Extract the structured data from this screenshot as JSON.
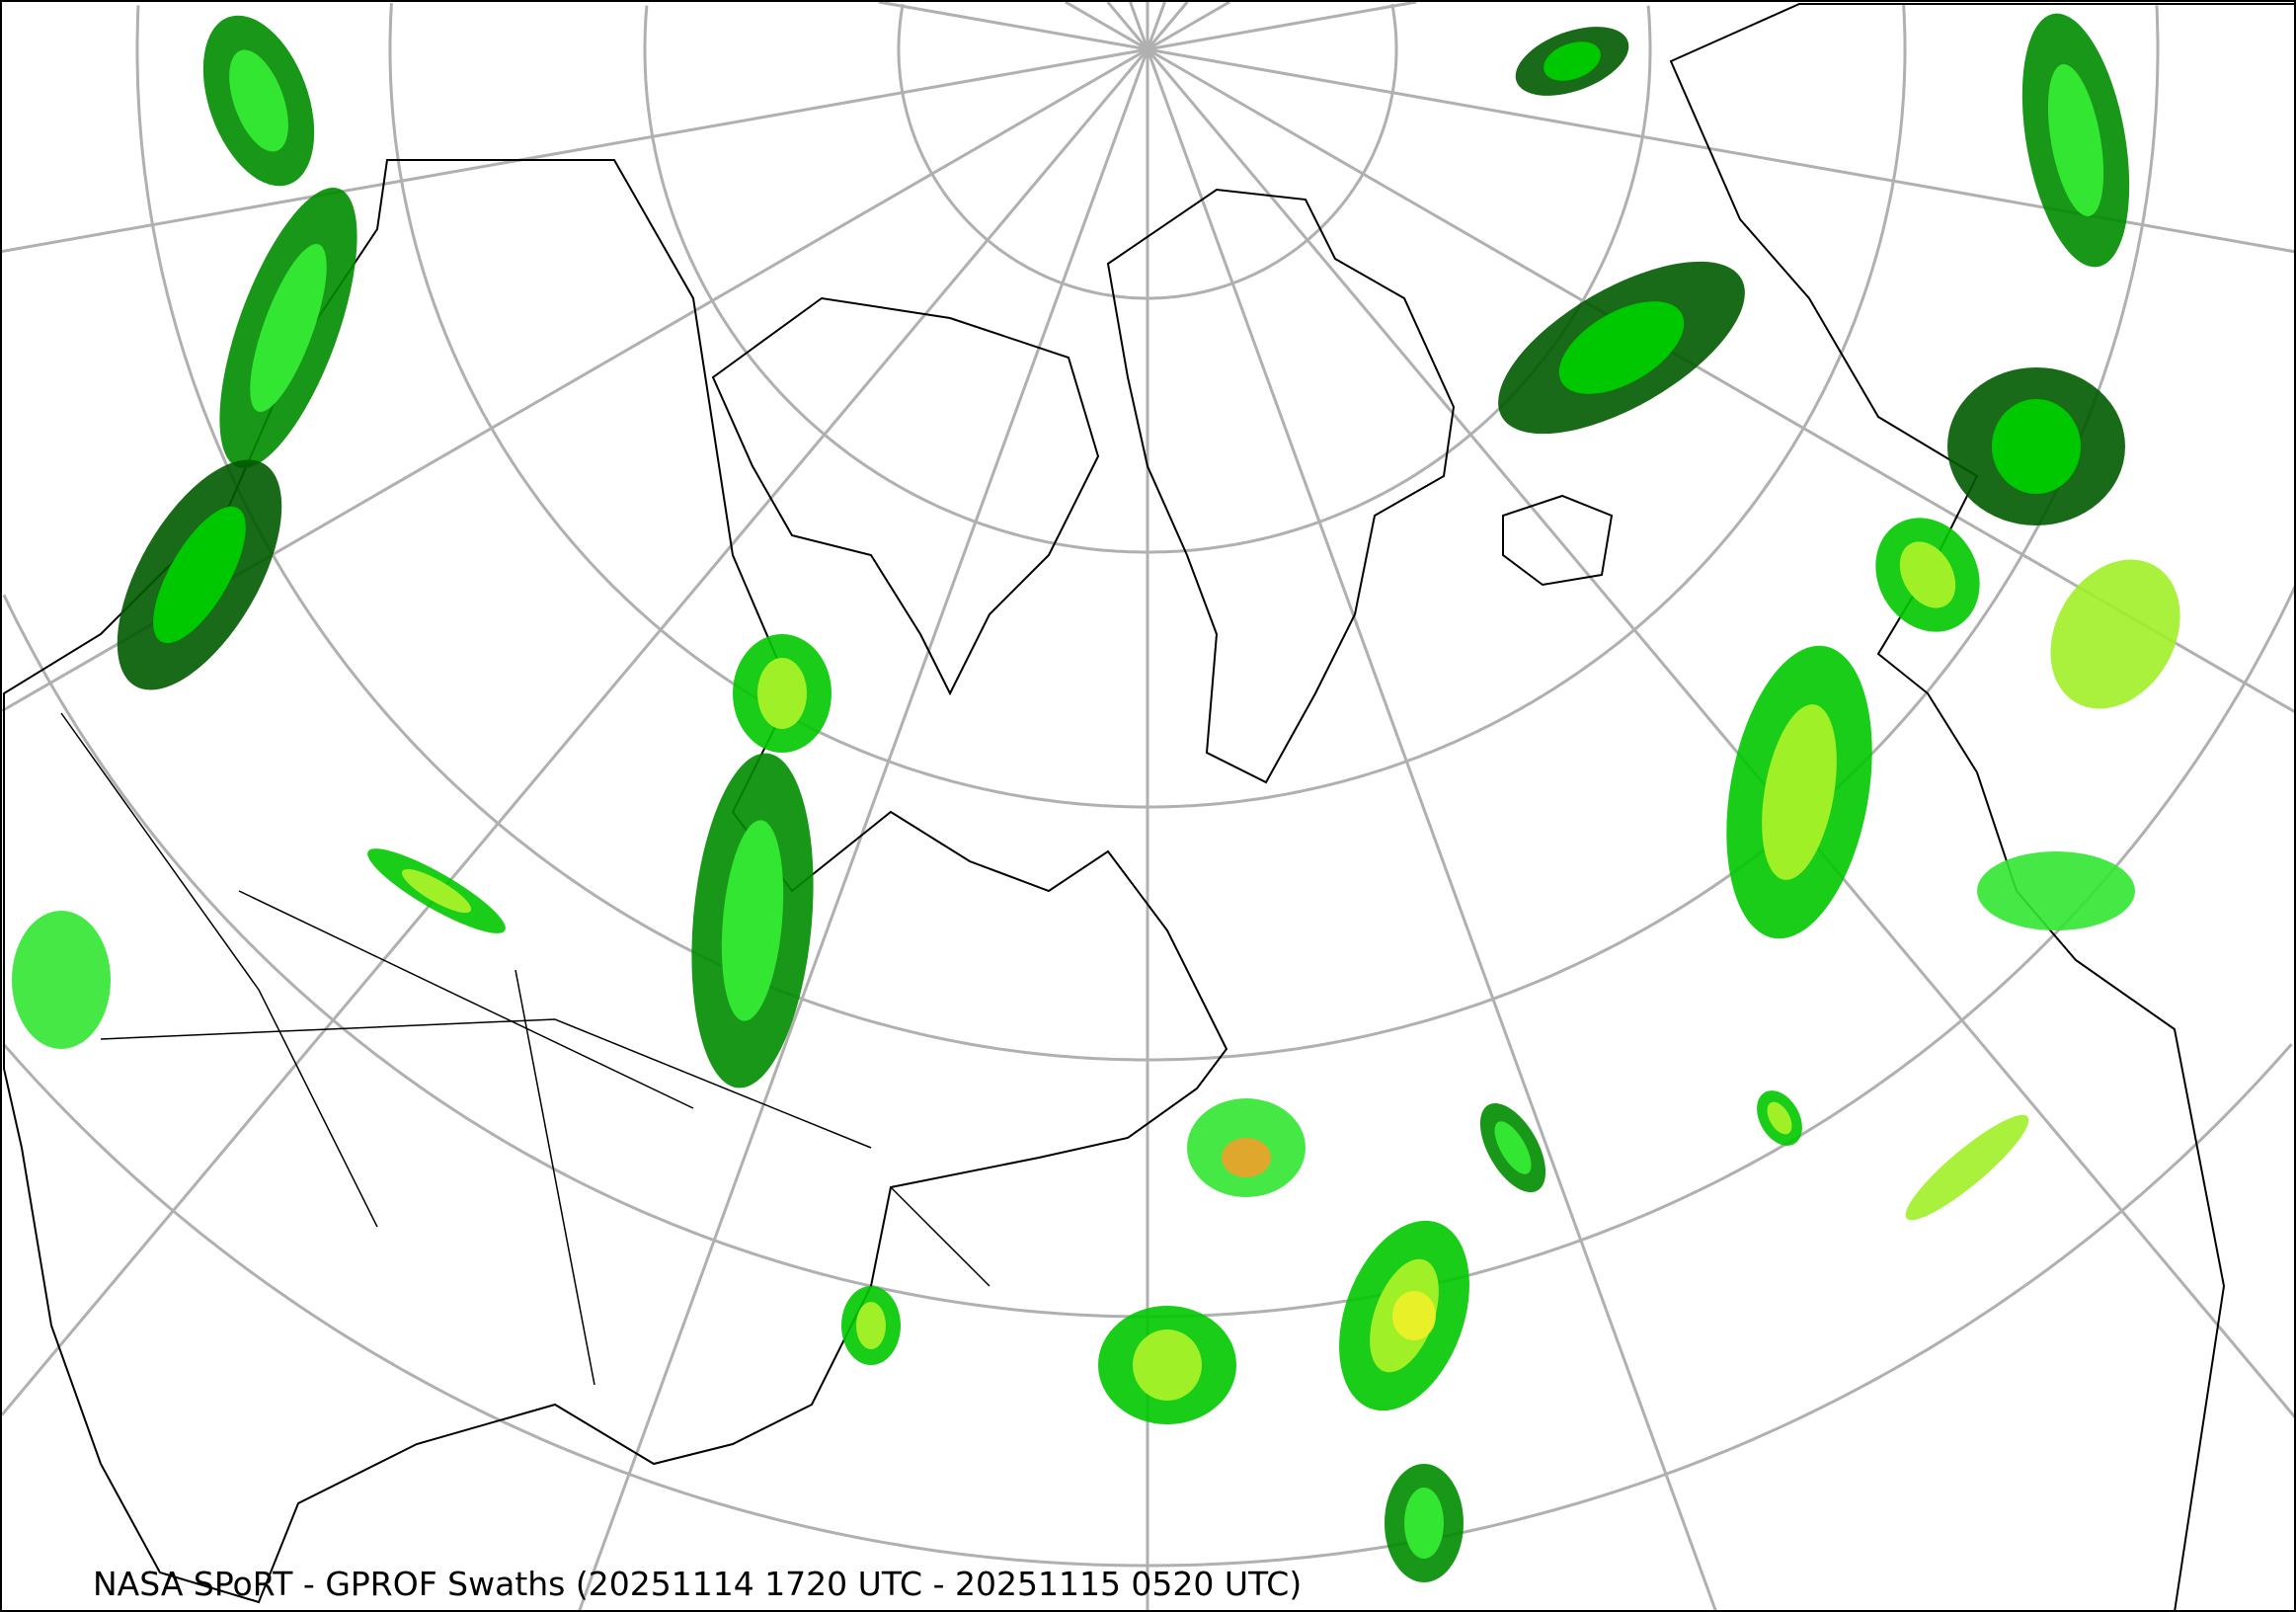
{
  "map": {
    "caption": "NASA SPoRT - GPROF Swaths (20251114 1720 UTC - 20251115 0520 UTC)",
    "projection": "north-polar-stereographic",
    "graticule_color": "#b0b0b0",
    "coastline_color": "#000000",
    "precip_colors": [
      "#005a00",
      "#008c00",
      "#00c800",
      "#32e632",
      "#a0f028",
      "#f0f028",
      "#f0a028",
      "#f03c28"
    ]
  }
}
